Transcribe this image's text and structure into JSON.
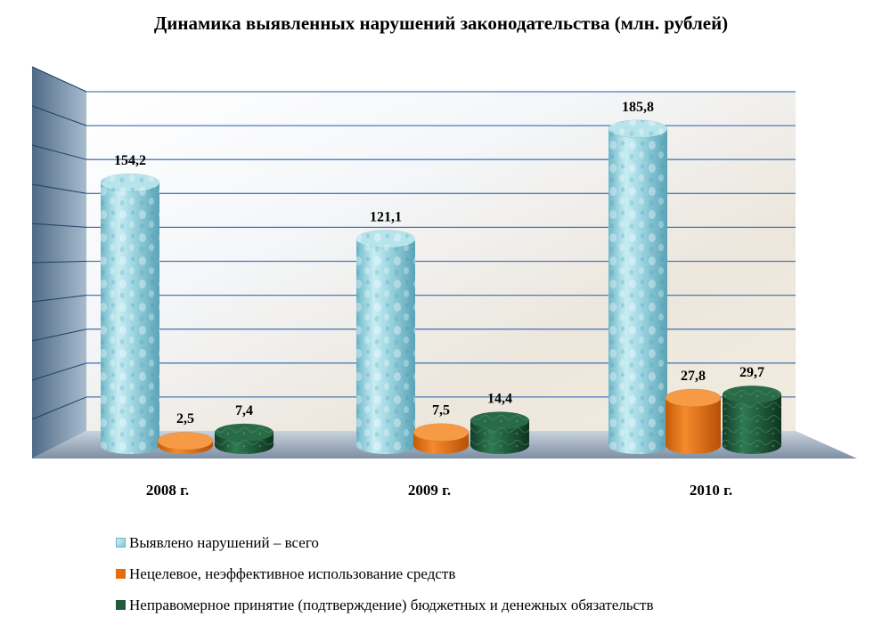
{
  "chart_data": {
    "type": "bar",
    "title": "Динамика выявленных нарушений законодательства (млн. рублей)",
    "categories": [
      "2008 г.",
      "2009 г.",
      "2010 г."
    ],
    "series": [
      {
        "name": "Выявлено нарушений – всего",
        "values": [
          154.2,
          121.1,
          185.8
        ],
        "labels": [
          "154,2",
          "121,1",
          "185,8"
        ],
        "color": "#8fd0dd"
      },
      {
        "name": "Нецелевое, неэффективное использование средств",
        "values": [
          2.5,
          7.5,
          27.8
        ],
        "labels": [
          "2,5",
          "7,5",
          "27,8"
        ],
        "color": "#e46c0a"
      },
      {
        "name": "Неправомерное принятие (подтверждение) бюджетных и денежных обязательств",
        "values": [
          7.4,
          14.4,
          29.7
        ],
        "labels": [
          "7,4",
          "14,4",
          "29,7"
        ],
        "color": "#1f5a3a"
      }
    ],
    "ylim": [
      0,
      200
    ],
    "grid": true,
    "legend_position": "bottom-left"
  }
}
